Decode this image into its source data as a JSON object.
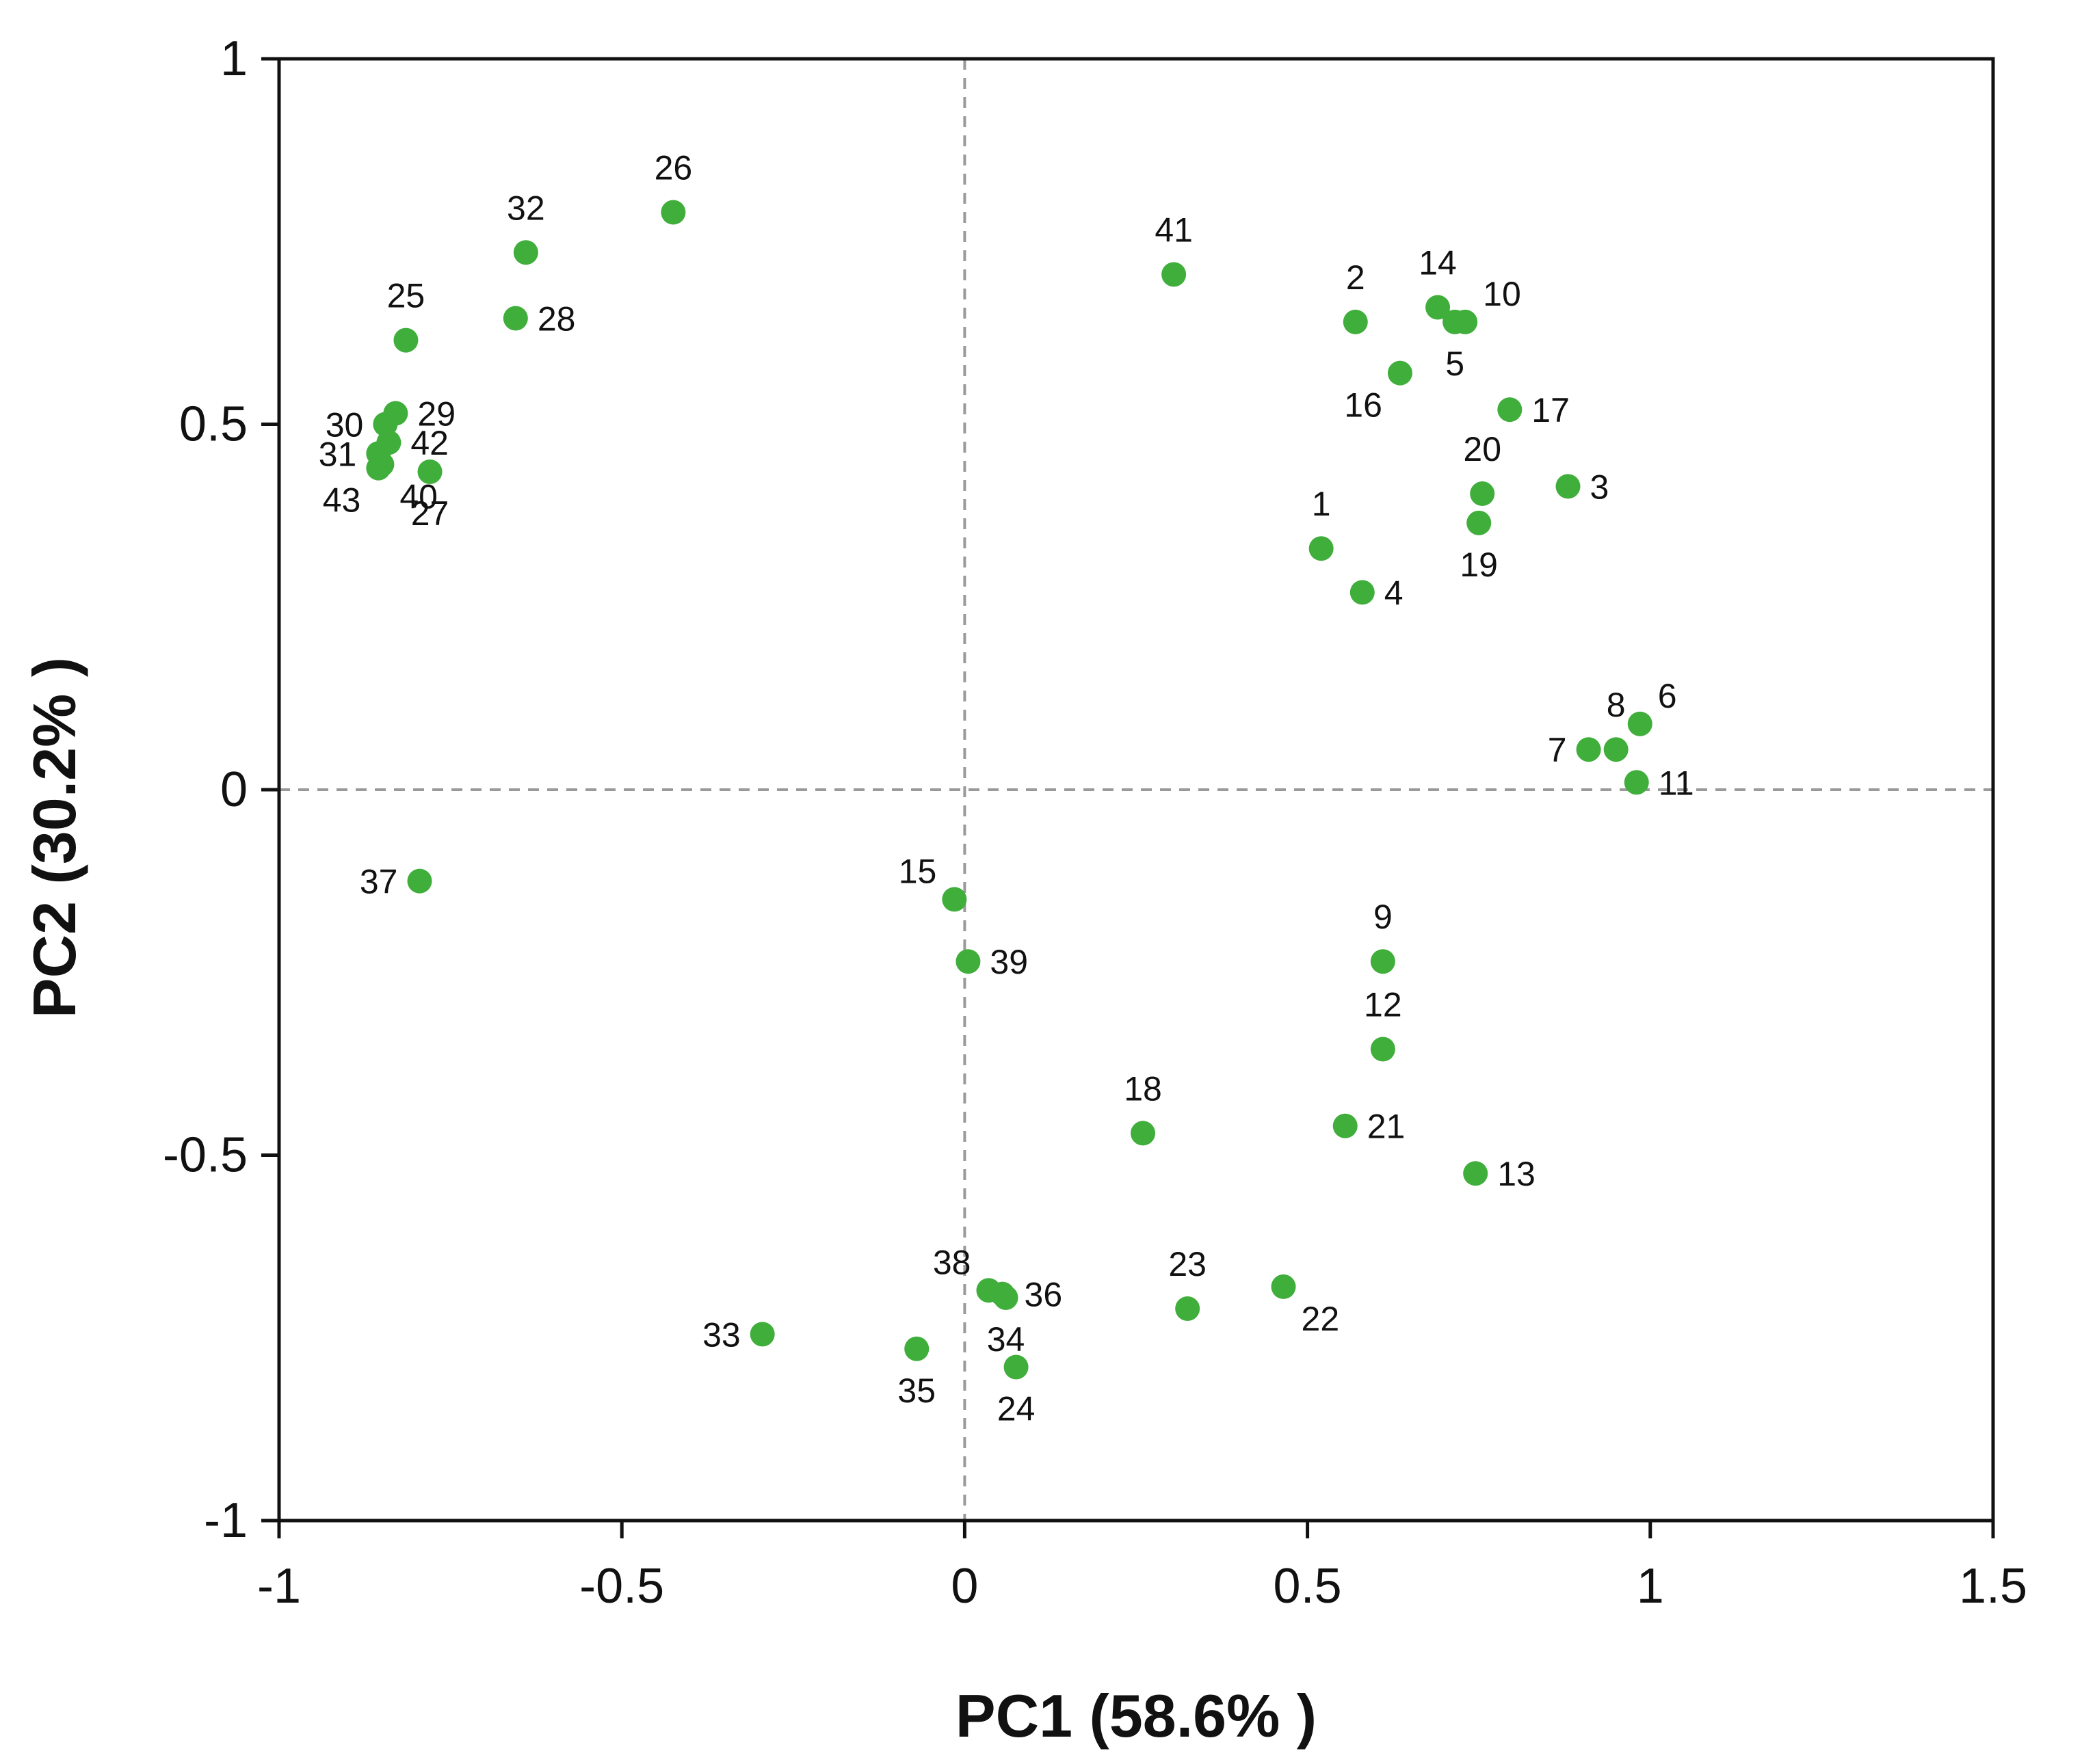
{
  "chart_data": {
    "type": "scatter",
    "title": "",
    "xlabel": "PC1 (58.6% )",
    "ylabel": "PC2 (30.2% )",
    "xlim": [
      -1,
      1.5
    ],
    "ylim": [
      -1,
      1
    ],
    "xticks": [
      "-1",
      "-0.5",
      "0",
      "0.5",
      "1",
      "1.5"
    ],
    "yticks": [
      "1",
      "0.5",
      "0",
      "-0.5",
      "-1"
    ],
    "reference_lines": {
      "x": 0,
      "y": 0
    },
    "point_color": "#3fae3b",
    "points": [
      {
        "label": "1",
        "x": 0.52,
        "y": 0.33,
        "pos": "above"
      },
      {
        "label": "2",
        "x": 0.57,
        "y": 0.64,
        "pos": "above"
      },
      {
        "label": "3",
        "x": 0.88,
        "y": 0.415,
        "pos": "right"
      },
      {
        "label": "4",
        "x": 0.58,
        "y": 0.27,
        "pos": "right"
      },
      {
        "label": "5",
        "x": 0.715,
        "y": 0.64,
        "pos": "below"
      },
      {
        "label": "6",
        "x": 0.985,
        "y": 0.09,
        "pos": "above-right"
      },
      {
        "label": "7",
        "x": 0.91,
        "y": 0.055,
        "pos": "left"
      },
      {
        "label": "8",
        "x": 0.95,
        "y": 0.055,
        "pos": "above"
      },
      {
        "label": "9",
        "x": 0.61,
        "y": -0.235,
        "pos": "above"
      },
      {
        "label": "10",
        "x": 0.73,
        "y": 0.64,
        "pos": "above-right"
      },
      {
        "label": "11",
        "x": 0.98,
        "y": 0.01,
        "pos": "right"
      },
      {
        "label": "12",
        "x": 0.61,
        "y": -0.355,
        "pos": "above"
      },
      {
        "label": "13",
        "x": 0.745,
        "y": -0.525,
        "pos": "right"
      },
      {
        "label": "14",
        "x": 0.69,
        "y": 0.66,
        "pos": "above"
      },
      {
        "label": "15",
        "x": -0.015,
        "y": -0.15,
        "pos": "above-left"
      },
      {
        "label": "16",
        "x": 0.635,
        "y": 0.57,
        "pos": "below-left"
      },
      {
        "label": "17",
        "x": 0.795,
        "y": 0.52,
        "pos": "right"
      },
      {
        "label": "18",
        "x": 0.26,
        "y": -0.47,
        "pos": "above"
      },
      {
        "label": "19",
        "x": 0.75,
        "y": 0.365,
        "pos": "below"
      },
      {
        "label": "20",
        "x": 0.755,
        "y": 0.405,
        "pos": "above"
      },
      {
        "label": "21",
        "x": 0.555,
        "y": -0.46,
        "pos": "right"
      },
      {
        "label": "22",
        "x": 0.465,
        "y": -0.68,
        "pos": "below-right"
      },
      {
        "label": "23",
        "x": 0.325,
        "y": -0.71,
        "pos": "above"
      },
      {
        "label": "24",
        "x": 0.075,
        "y": -0.79,
        "pos": "below"
      },
      {
        "label": "25",
        "x": -0.815,
        "y": 0.615,
        "pos": "above"
      },
      {
        "label": "26",
        "x": -0.425,
        "y": 0.79,
        "pos": "above"
      },
      {
        "label": "27",
        "x": -0.78,
        "y": 0.435,
        "pos": "below"
      },
      {
        "label": "28",
        "x": -0.655,
        "y": 0.645,
        "pos": "right"
      },
      {
        "label": "29",
        "x": -0.83,
        "y": 0.515,
        "pos": "right"
      },
      {
        "label": "30",
        "x": -0.845,
        "y": 0.5,
        "pos": "left"
      },
      {
        "label": "31",
        "x": -0.855,
        "y": 0.46,
        "pos": "left"
      },
      {
        "label": "32",
        "x": -0.64,
        "y": 0.735,
        "pos": "above"
      },
      {
        "label": "33",
        "x": -0.295,
        "y": -0.745,
        "pos": "left"
      },
      {
        "label": "34",
        "x": 0.06,
        "y": -0.695,
        "pos": "below"
      },
      {
        "label": "35",
        "x": -0.07,
        "y": -0.765,
        "pos": "below"
      },
      {
        "label": "36",
        "x": 0.055,
        "y": -0.69,
        "pos": "right"
      },
      {
        "label": "37",
        "x": -0.795,
        "y": -0.125,
        "pos": "left"
      },
      {
        "label": "38",
        "x": 0.035,
        "y": -0.685,
        "pos": "above-left"
      },
      {
        "label": "39",
        "x": 0.005,
        "y": -0.235,
        "pos": "right"
      },
      {
        "label": "40",
        "x": -0.85,
        "y": 0.445,
        "pos": "below-right"
      },
      {
        "label": "41",
        "x": 0.305,
        "y": 0.705,
        "pos": "above"
      },
      {
        "label": "42",
        "x": -0.84,
        "y": 0.475,
        "pos": "right"
      },
      {
        "label": "43",
        "x": -0.855,
        "y": 0.44,
        "pos": "below-left"
      }
    ]
  }
}
